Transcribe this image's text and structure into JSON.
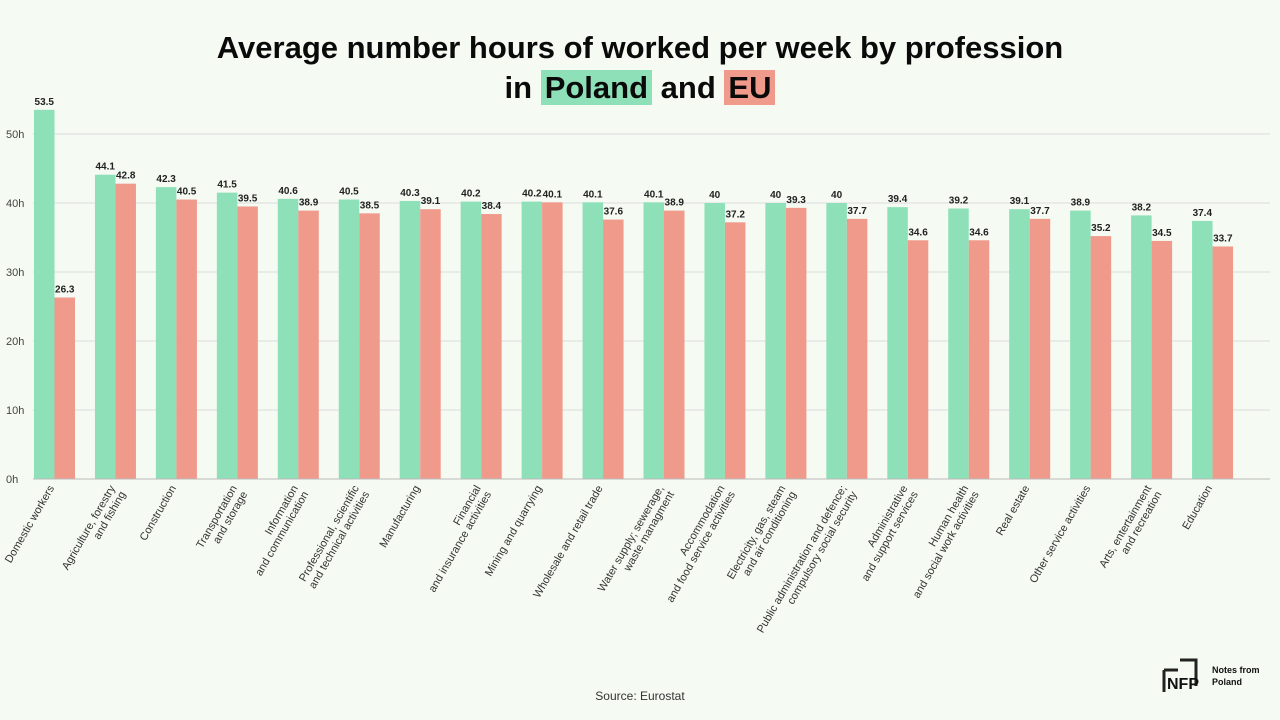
{
  "title": {
    "line1": "Average number hours of worked per week by profession",
    "line2_prefix": "in",
    "poland": "Poland",
    "and": "and",
    "eu": "EU"
  },
  "source": "Source: Eurostat",
  "logo": {
    "mark": "NFP",
    "line1": "Notes from",
    "line2": "Poland"
  },
  "colors": {
    "poland": "#8de0b8",
    "eu": "#f09a8c",
    "background": "#f5faf2",
    "grid": "#dcdcdc"
  },
  "chart_data": {
    "type": "bar",
    "title": "Average number hours of worked per week by profession in Poland and EU",
    "categories": [
      [
        "Domestic workers"
      ],
      [
        "Agriculture, forestry",
        "and fishing"
      ],
      [
        "Construction"
      ],
      [
        "Transportation",
        "and storage"
      ],
      [
        "Information",
        "and communication"
      ],
      [
        "Professional, scientific",
        "and technical activities"
      ],
      [
        "Manufacturing"
      ],
      [
        "Financial",
        "and insurance activities"
      ],
      [
        "Mining and quarrying"
      ],
      [
        "Wholesale and retail trade"
      ],
      [
        "Water supply; sewerage,",
        "waste managment"
      ],
      [
        "Accommodation",
        "and food service activities"
      ],
      [
        "Electricity, gas, steam",
        "and air conditioning"
      ],
      [
        "Public administration and defence;",
        "compulsory social security"
      ],
      [
        "Administrative",
        "and support services"
      ],
      [
        "Human health",
        "and social work activities"
      ],
      [
        "Real estate"
      ],
      [
        "Other service activities"
      ],
      [
        "Arts, entertainment",
        "and recreation"
      ],
      [
        "Education"
      ]
    ],
    "series": [
      {
        "name": "Poland",
        "color": "#8de0b8",
        "values": [
          53.5,
          44.1,
          42.3,
          41.5,
          40.6,
          40.5,
          40.3,
          40.2,
          40.2,
          40.1,
          40.1,
          40,
          40,
          40,
          39.4,
          39.2,
          39.1,
          38.9,
          38.2,
          37.4
        ]
      },
      {
        "name": "EU",
        "color": "#f09a8c",
        "values": [
          26.3,
          42.8,
          40.5,
          39.5,
          38.9,
          38.5,
          39.1,
          38.4,
          40.1,
          37.6,
          38.9,
          37.2,
          39.3,
          37.7,
          34.6,
          34.6,
          37.7,
          35.2,
          34.5,
          33.7
        ]
      }
    ],
    "yticks": [
      "0h",
      "10h",
      "20h",
      "30h",
      "40h",
      "50h"
    ],
    "ylim": [
      0,
      55
    ],
    "grid": true,
    "legend": "in title"
  }
}
